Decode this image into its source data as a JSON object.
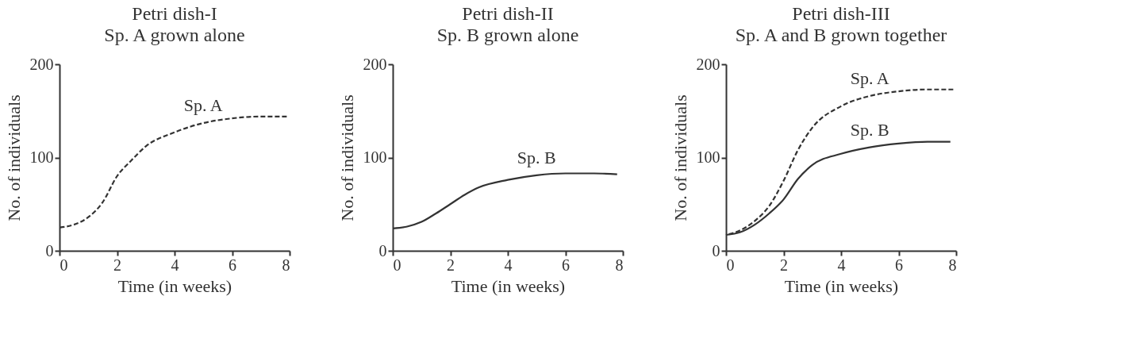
{
  "chart_data": [
    {
      "type": "line",
      "title": "Petri dish-I",
      "subtitle": "Sp. A grown alone",
      "xlabel": "Time (in weeks)",
      "ylabel": "No. of individuals",
      "xlim": [
        0,
        8
      ],
      "xticks": [
        0,
        2,
        4,
        6,
        8
      ],
      "ylim": [
        0,
        200
      ],
      "yticks": [
        0,
        100,
        200
      ],
      "grid": false,
      "legend": false,
      "series": [
        {
          "name": "Sp. A",
          "color": "#333333",
          "line_style": "dashed",
          "x": [
            0,
            0.5,
            1,
            1.5,
            2,
            2.5,
            3,
            4,
            5,
            6,
            7,
            7.9
          ],
          "values": [
            25,
            28,
            36,
            52,
            80,
            97,
            112,
            127,
            137,
            142,
            144,
            144
          ]
        }
      ]
    },
    {
      "type": "line",
      "title": "Petri dish-II",
      "subtitle": "Sp. B grown alone",
      "xlabel": "Time (in weeks)",
      "ylabel": "No. of individuals",
      "xlim": [
        0,
        8
      ],
      "xticks": [
        0,
        2,
        4,
        6,
        8
      ],
      "ylim": [
        0,
        200
      ],
      "yticks": [
        0,
        100,
        200
      ],
      "grid": false,
      "legend": false,
      "series": [
        {
          "name": "Sp. B",
          "color": "#333333",
          "line_style": "solid",
          "x": [
            0,
            0.5,
            1,
            1.5,
            2,
            2.5,
            3,
            4,
            5,
            6,
            7,
            7.8
          ],
          "values": [
            24,
            26,
            31,
            40,
            50,
            60,
            68,
            76,
            81,
            83,
            83,
            82
          ]
        }
      ]
    },
    {
      "type": "line",
      "title": "Petri dish-III",
      "subtitle": "Sp. A and B grown together",
      "xlabel": "Time (in weeks)",
      "ylabel": "No. of individuals",
      "xlim": [
        0,
        8
      ],
      "xticks": [
        0,
        2,
        4,
        6,
        8
      ],
      "ylim": [
        0,
        200
      ],
      "yticks": [
        0,
        100,
        200
      ],
      "grid": false,
      "legend": false,
      "series": [
        {
          "name": "Sp. A",
          "color": "#333333",
          "line_style": "dashed",
          "x": [
            0,
            0.5,
            1,
            1.5,
            2,
            2.5,
            3,
            4,
            5,
            6,
            7,
            7.9
          ],
          "values": [
            17,
            22,
            32,
            48,
            75,
            108,
            132,
            155,
            166,
            171,
            173,
            173
          ]
        },
        {
          "name": "Sp. B",
          "color": "#333333",
          "line_style": "solid",
          "x": [
            0,
            0.5,
            1,
            1.5,
            2,
            2.5,
            3,
            4,
            5,
            6,
            7,
            7.8
          ],
          "values": [
            17,
            20,
            28,
            40,
            55,
            77,
            92,
            104,
            111,
            115,
            117,
            117
          ]
        }
      ]
    }
  ]
}
